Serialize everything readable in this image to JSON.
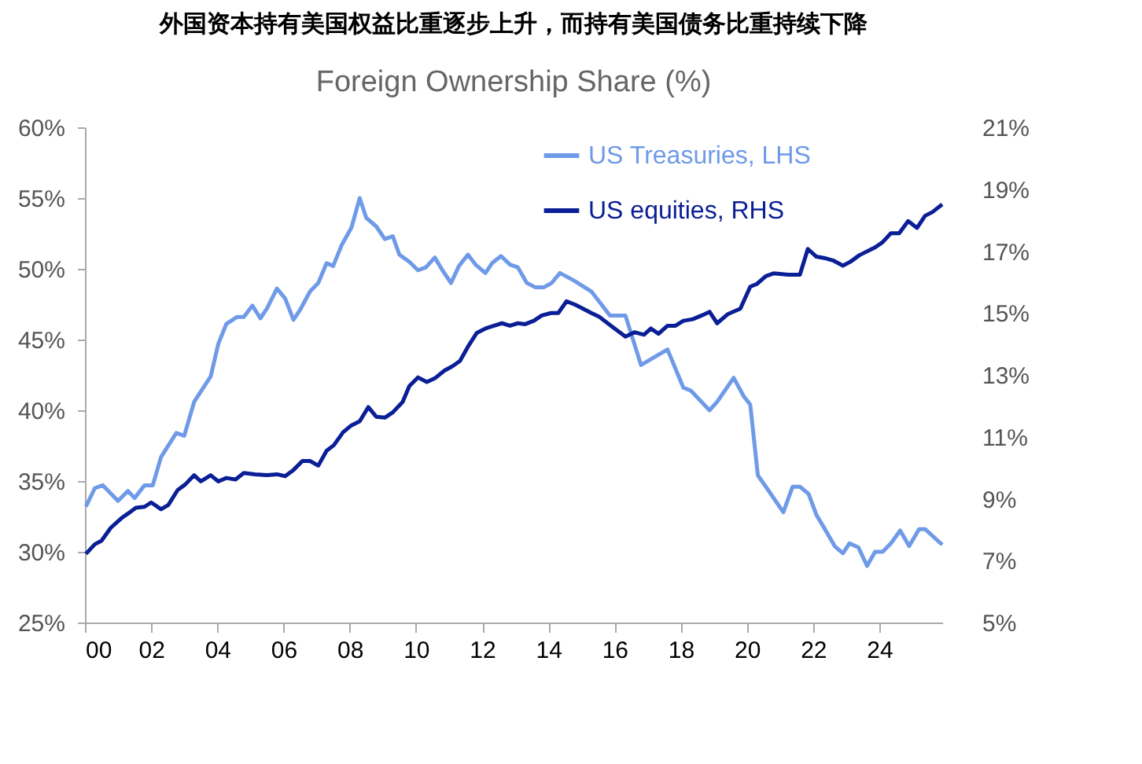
{
  "chart_data": {
    "type": "line",
    "title": "外国资本持有美国权益比重逐步上升，而持有美国债务比重持续下降",
    "subtitle": "Foreign Ownership Share (%)",
    "xlim": [
      2000,
      2025.9
    ],
    "xticks": [
      {
        "value": 2000,
        "label": "00"
      },
      {
        "value": 2002,
        "label": "02"
      },
      {
        "value": 2004,
        "label": "04"
      },
      {
        "value": 2006,
        "label": "06"
      },
      {
        "value": 2008,
        "label": "08"
      },
      {
        "value": 2010,
        "label": "10"
      },
      {
        "value": 2012,
        "label": "12"
      },
      {
        "value": 2014,
        "label": "14"
      },
      {
        "value": 2016,
        "label": "16"
      },
      {
        "value": 2018,
        "label": "18"
      },
      {
        "value": 2020,
        "label": "20"
      },
      {
        "value": 2022,
        "label": "22"
      },
      {
        "value": 2024,
        "label": "24"
      }
    ],
    "ylim": [
      25,
      60
    ],
    "yticks": [
      {
        "value": 25,
        "label": "25%"
      },
      {
        "value": 30,
        "label": "30%"
      },
      {
        "value": 35,
        "label": "35%"
      },
      {
        "value": 40,
        "label": "40%"
      },
      {
        "value": 45,
        "label": "45%"
      },
      {
        "value": 50,
        "label": "50%"
      },
      {
        "value": 55,
        "label": "55%"
      },
      {
        "value": 60,
        "label": "60%"
      }
    ],
    "y2lim": [
      5,
      21
    ],
    "y2ticks": [
      {
        "value": 5,
        "label": "5%"
      },
      {
        "value": 7,
        "label": "7%"
      },
      {
        "value": 9,
        "label": "9%"
      },
      {
        "value": 11,
        "label": "11%"
      },
      {
        "value": 13,
        "label": "13%"
      },
      {
        "value": 15,
        "label": "15%"
      },
      {
        "value": 17,
        "label": "17%"
      },
      {
        "value": 19,
        "label": "19%"
      },
      {
        "value": 21,
        "label": "21%"
      }
    ],
    "grid": false,
    "legend": "top",
    "marker": "none",
    "line_style": "solid",
    "series": [
      {
        "name": "US Treasuries, LHS",
        "color": "#6f9ae8",
        "x": [
          2000.03,
          2000.3,
          2000.54,
          2001.0,
          2001.3,
          2001.5,
          2001.8,
          2002.05,
          2002.3,
          2002.76,
          2003.0,
          2003.3,
          2003.8,
          2004.03,
          2004.27,
          2004.6,
          2004.8,
          2005.06,
          2005.3,
          2005.5,
          2005.8,
          2006.05,
          2006.3,
          2006.5,
          2006.8,
          2007.05,
          2007.3,
          2007.5,
          2007.76,
          2008.05,
          2008.3,
          2008.5,
          2008.8,
          2009.06,
          2009.3,
          2009.5,
          2009.8,
          2010.06,
          2010.3,
          2010.57,
          2010.8,
          2011.06,
          2011.3,
          2011.57,
          2011.8,
          2012.1,
          2012.3,
          2012.57,
          2012.84,
          2013.08,
          2013.35,
          2013.6,
          2013.87,
          2014.1,
          2014.35,
          2014.75,
          2015.3,
          2015.86,
          2016.33,
          2016.8,
          2017.6,
          2018.08,
          2018.3,
          2018.87,
          2019.1,
          2019.6,
          2019.9,
          2020.1,
          2020.33,
          2020.6,
          2021.1,
          2021.38,
          2021.6,
          2021.86,
          2022.1,
          2022.33,
          2022.65,
          2022.9,
          2023.1,
          2023.37,
          2023.63,
          2023.87,
          2024.1,
          2024.35,
          2024.63,
          2024.9,
          2025.2,
          2025.38,
          2025.9
        ],
        "values": [
          33.2,
          34.5,
          34.7,
          33.6,
          34.3,
          33.8,
          34.7,
          34.7,
          36.7,
          38.4,
          38.2,
          40.6,
          42.4,
          44.7,
          46.1,
          46.6,
          46.6,
          47.4,
          46.5,
          47.2,
          48.6,
          47.9,
          46.4,
          47.1,
          48.4,
          49.0,
          50.4,
          50.2,
          51.7,
          52.9,
          55.0,
          53.6,
          53.0,
          52.1,
          52.3,
          51.0,
          50.5,
          49.9,
          50.1,
          50.8,
          49.9,
          49.0,
          50.2,
          51.0,
          50.3,
          49.7,
          50.4,
          50.9,
          50.3,
          50.1,
          49.0,
          48.7,
          48.7,
          49.0,
          49.7,
          49.2,
          48.4,
          46.7,
          46.7,
          43.2,
          44.3,
          41.6,
          41.4,
          40.0,
          40.6,
          42.3,
          41.0,
          40.4,
          35.4,
          34.5,
          32.8,
          34.6,
          34.6,
          34.1,
          32.6,
          31.7,
          30.4,
          29.9,
          30.6,
          30.3,
          29.0,
          30.0,
          30.0,
          30.6,
          31.5,
          30.4,
          31.6,
          31.6,
          30.5
        ]
      },
      {
        "name": "US equities, RHS",
        "color": "#0a1e96",
        "axis": "y2",
        "x": [
          2000.03,
          2000.3,
          2000.5,
          2000.78,
          2001.1,
          2001.3,
          2001.54,
          2001.8,
          2002.0,
          2002.3,
          2002.52,
          2002.8,
          2003.03,
          2003.3,
          2003.5,
          2003.8,
          2004.03,
          2004.27,
          2004.55,
          2004.8,
          2005.14,
          2005.5,
          2005.8,
          2006.05,
          2006.3,
          2006.57,
          2006.8,
          2007.05,
          2007.3,
          2007.52,
          2007.8,
          2008.05,
          2008.3,
          2008.56,
          2008.8,
          2009.06,
          2009.3,
          2009.6,
          2009.8,
          2010.06,
          2010.33,
          2010.57,
          2010.86,
          2011.1,
          2011.33,
          2011.57,
          2011.84,
          2012.1,
          2012.36,
          2012.6,
          2012.84,
          2013.08,
          2013.3,
          2013.56,
          2013.8,
          2014.08,
          2014.3,
          2014.55,
          2014.83,
          2015.3,
          2015.55,
          2015.94,
          2016.33,
          2016.6,
          2016.89,
          2017.1,
          2017.33,
          2017.6,
          2017.84,
          2018.08,
          2018.36,
          2018.63,
          2018.87,
          2019.1,
          2019.43,
          2019.8,
          2020.1,
          2020.3,
          2020.57,
          2020.8,
          2021.25,
          2021.6,
          2021.84,
          2022.1,
          2022.33,
          2022.6,
          2022.9,
          2023.13,
          2023.4,
          2023.87,
          2024.1,
          2024.35,
          2024.6,
          2024.87,
          2025.14,
          2025.38,
          2025.6,
          2025.9
        ],
        "values": [
          7.22,
          7.53,
          7.64,
          8.06,
          8.37,
          8.52,
          8.71,
          8.74,
          8.88,
          8.66,
          8.8,
          9.28,
          9.46,
          9.76,
          9.56,
          9.76,
          9.56,
          9.67,
          9.62,
          9.83,
          9.79,
          9.76,
          9.79,
          9.73,
          9.93,
          10.22,
          10.22,
          10.07,
          10.55,
          10.73,
          11.15,
          11.37,
          11.5,
          11.96,
          11.65,
          11.62,
          11.79,
          12.13,
          12.64,
          12.92,
          12.77,
          12.89,
          13.14,
          13.28,
          13.45,
          13.91,
          14.36,
          14.5,
          14.59,
          14.67,
          14.59,
          14.67,
          14.64,
          14.75,
          14.92,
          15.0,
          15.0,
          15.38,
          15.26,
          15.0,
          14.87,
          14.55,
          14.24,
          14.38,
          14.3,
          14.5,
          14.33,
          14.59,
          14.59,
          14.75,
          14.8,
          14.92,
          15.04,
          14.67,
          14.97,
          15.14,
          15.85,
          15.94,
          16.19,
          16.28,
          16.24,
          16.24,
          17.07,
          16.82,
          16.78,
          16.7,
          16.53,
          16.66,
          16.87,
          17.12,
          17.29,
          17.58,
          17.58,
          17.97,
          17.75,
          18.14,
          18.26,
          18.51
        ]
      }
    ]
  }
}
